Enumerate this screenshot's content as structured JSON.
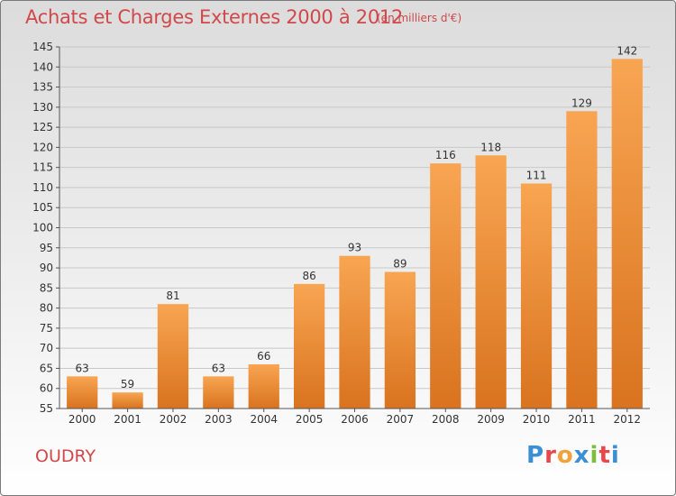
{
  "header": {
    "title": "Achats et Charges Externes 2000 à 2012",
    "subtitle": "(en milliers d'€)"
  },
  "footer": {
    "town": "OUDRY",
    "logo": "Proxiti",
    "logo_colors": [
      "#3a8fd6",
      "#e8484a",
      "#f2a23a",
      "#3a8fd6",
      "#7bbf3a",
      "#e8484a",
      "#3a8fd6"
    ]
  },
  "chart_data": {
    "type": "bar",
    "categories": [
      "2000",
      "2001",
      "2002",
      "2003",
      "2004",
      "2005",
      "2006",
      "2007",
      "2008",
      "2009",
      "2010",
      "2011",
      "2012"
    ],
    "values": [
      63,
      59,
      81,
      63,
      66,
      86,
      93,
      89,
      116,
      118,
      111,
      129,
      142
    ],
    "title": "Achats et Charges Externes 2000 à 2012",
    "xlabel": "",
    "ylabel": "",
    "ylim": [
      55,
      145
    ],
    "yticks": [
      55,
      60,
      65,
      70,
      75,
      80,
      85,
      90,
      95,
      100,
      105,
      110,
      115,
      120,
      125,
      130,
      135,
      140,
      145
    ],
    "grid": true,
    "bar_color_top": "#f8a552",
    "bar_color_bottom": "#d9731f"
  }
}
